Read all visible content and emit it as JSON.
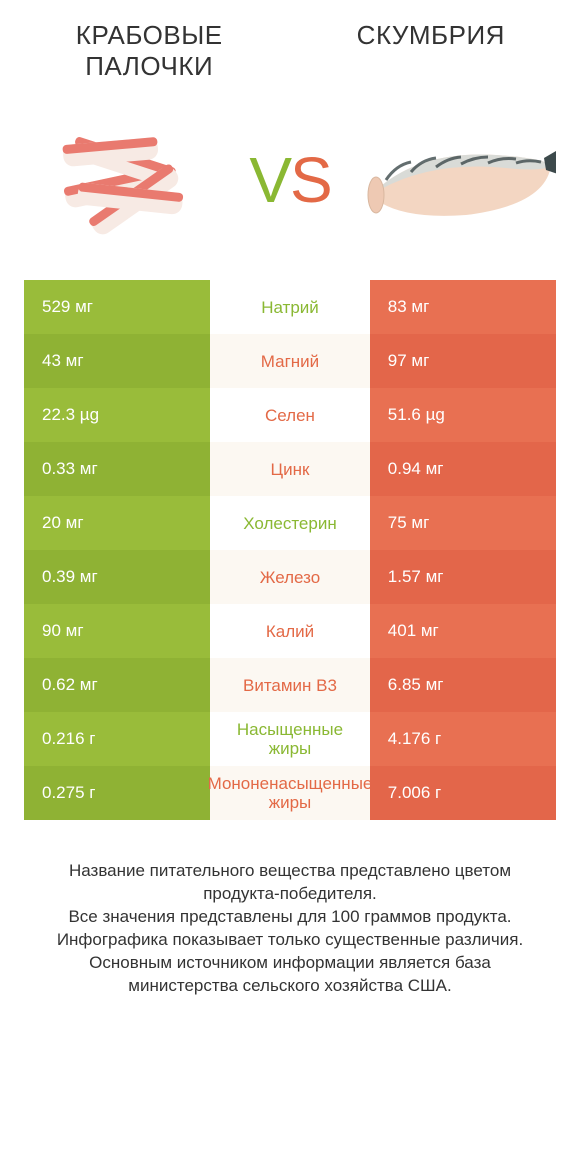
{
  "titles": {
    "left": "КРАБОВЫЕ ПАЛОЧКИ",
    "right": "СКУМБРИЯ"
  },
  "vs": {
    "v": "V",
    "s": "S"
  },
  "colors": {
    "green_a": "#99bc3a",
    "green_b": "#8fb234",
    "orange_a": "#e87052",
    "orange_b": "#e3664a",
    "mid_a": "#ffffff",
    "mid_b": "#fcf8f2",
    "label_green": "#8ab833",
    "label_orange": "#e36946"
  },
  "rows": [
    {
      "left": "529 мг",
      "label": "Натрий",
      "right": "83 мг",
      "winner": "left"
    },
    {
      "left": "43 мг",
      "label": "Магний",
      "right": "97 мг",
      "winner": "right"
    },
    {
      "left": "22.3 µg",
      "label": "Селен",
      "right": "51.6 µg",
      "winner": "right"
    },
    {
      "left": "0.33 мг",
      "label": "Цинк",
      "right": "0.94 мг",
      "winner": "right"
    },
    {
      "left": "20 мг",
      "label": "Холестерин",
      "right": "75 мг",
      "winner": "left"
    },
    {
      "left": "0.39 мг",
      "label": "Железо",
      "right": "1.57 мг",
      "winner": "right"
    },
    {
      "left": "90 мг",
      "label": "Калий",
      "right": "401 мг",
      "winner": "right"
    },
    {
      "left": "0.62 мг",
      "label": "Витамин B3",
      "right": "6.85 мг",
      "winner": "right"
    },
    {
      "left": "0.216 г",
      "label": "Насыщенные жиры",
      "right": "4.176 г",
      "winner": "left"
    },
    {
      "left": "0.275 г",
      "label": "Мононенасыщенные жиры",
      "right": "7.006 г",
      "winner": "right"
    }
  ],
  "footer": "Название питательного вещества представлено цветом продукта-победителя.\nВсе значения представлены для 100 граммов продукта.\nИнфографика показывает только существенные различия.\nОсновным источником информации является база министерства сельского хозяйства США."
}
